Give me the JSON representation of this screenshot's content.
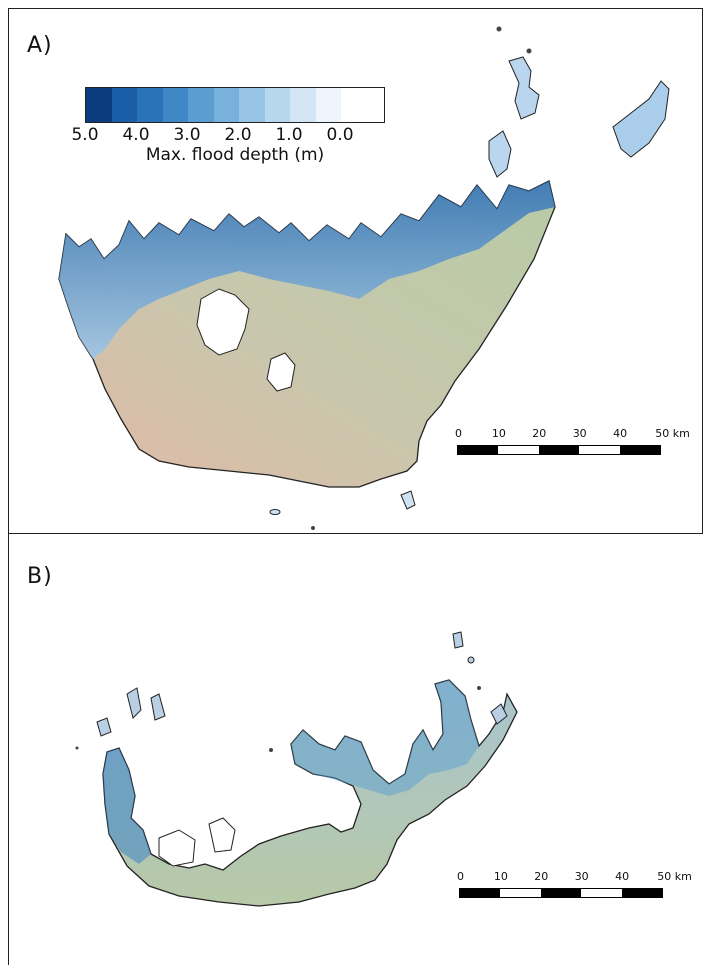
{
  "panels": {
    "a": {
      "label": "A)"
    },
    "b": {
      "label": "B)"
    }
  },
  "legend": {
    "title": "Max. flood depth (m)",
    "ticks": [
      "5.0",
      "4.0",
      "3.0",
      "2.0",
      "1.0",
      "0.0"
    ],
    "colors": [
      "#0b3d7e",
      "#1a5ea8",
      "#2b73b8",
      "#3f88c5",
      "#5a9dd0",
      "#78b2dc",
      "#98c5e5",
      "#b7d7ee",
      "#d4e6f5",
      "#eef5fc"
    ]
  },
  "scalebar": {
    "ticks": [
      "0",
      "10",
      "20",
      "30",
      "40",
      "50 km"
    ],
    "segment_colors": [
      "#000000",
      "#ffffff",
      "#000000",
      "#ffffff",
      "#000000"
    ]
  },
  "map_colors": {
    "land_green": "#b9c9a6",
    "land_pink": "#e4b7a5",
    "flood_deep": "#2f72b8",
    "flood_light": "#b9d6ee",
    "outline": "#222222"
  }
}
